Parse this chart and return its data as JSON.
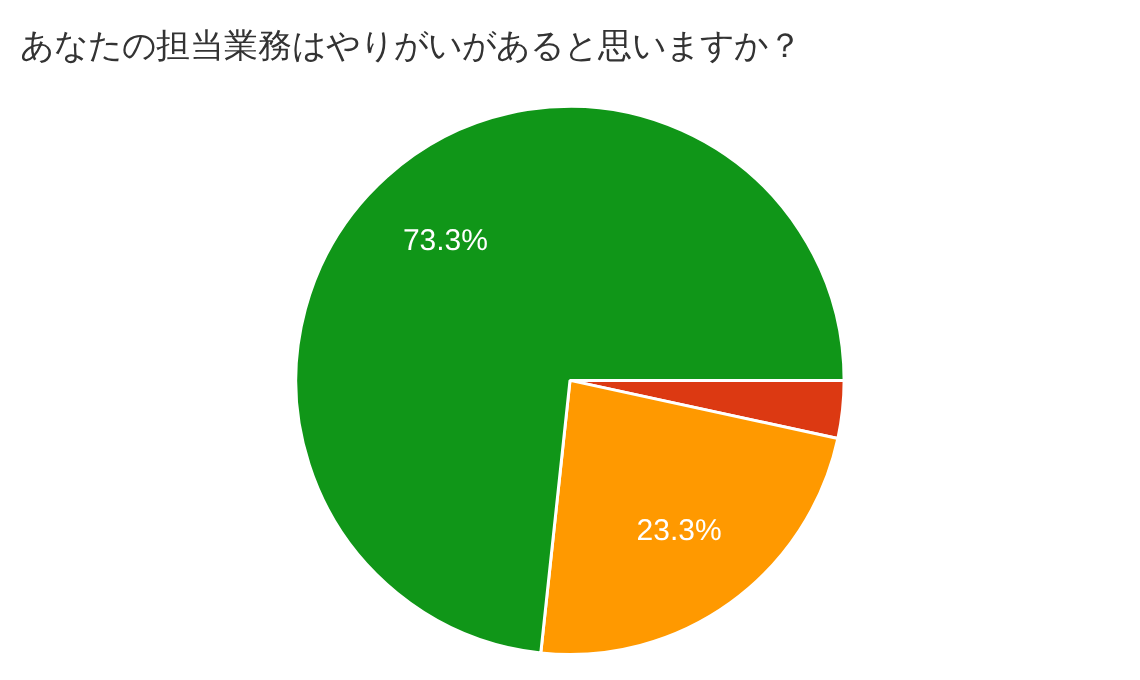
{
  "chart_data": {
    "type": "pie",
    "title": "あなたの担当業務はやりがいがあると思いますか？",
    "categories": [
      null,
      null,
      null
    ],
    "values": [
      3.4,
      23.3,
      73.3
    ],
    "colors": [
      "#dc3912",
      "#ff9900",
      "#109618"
    ],
    "value_labels": [
      null,
      "23.3%",
      "73.3%"
    ],
    "legend": false
  }
}
